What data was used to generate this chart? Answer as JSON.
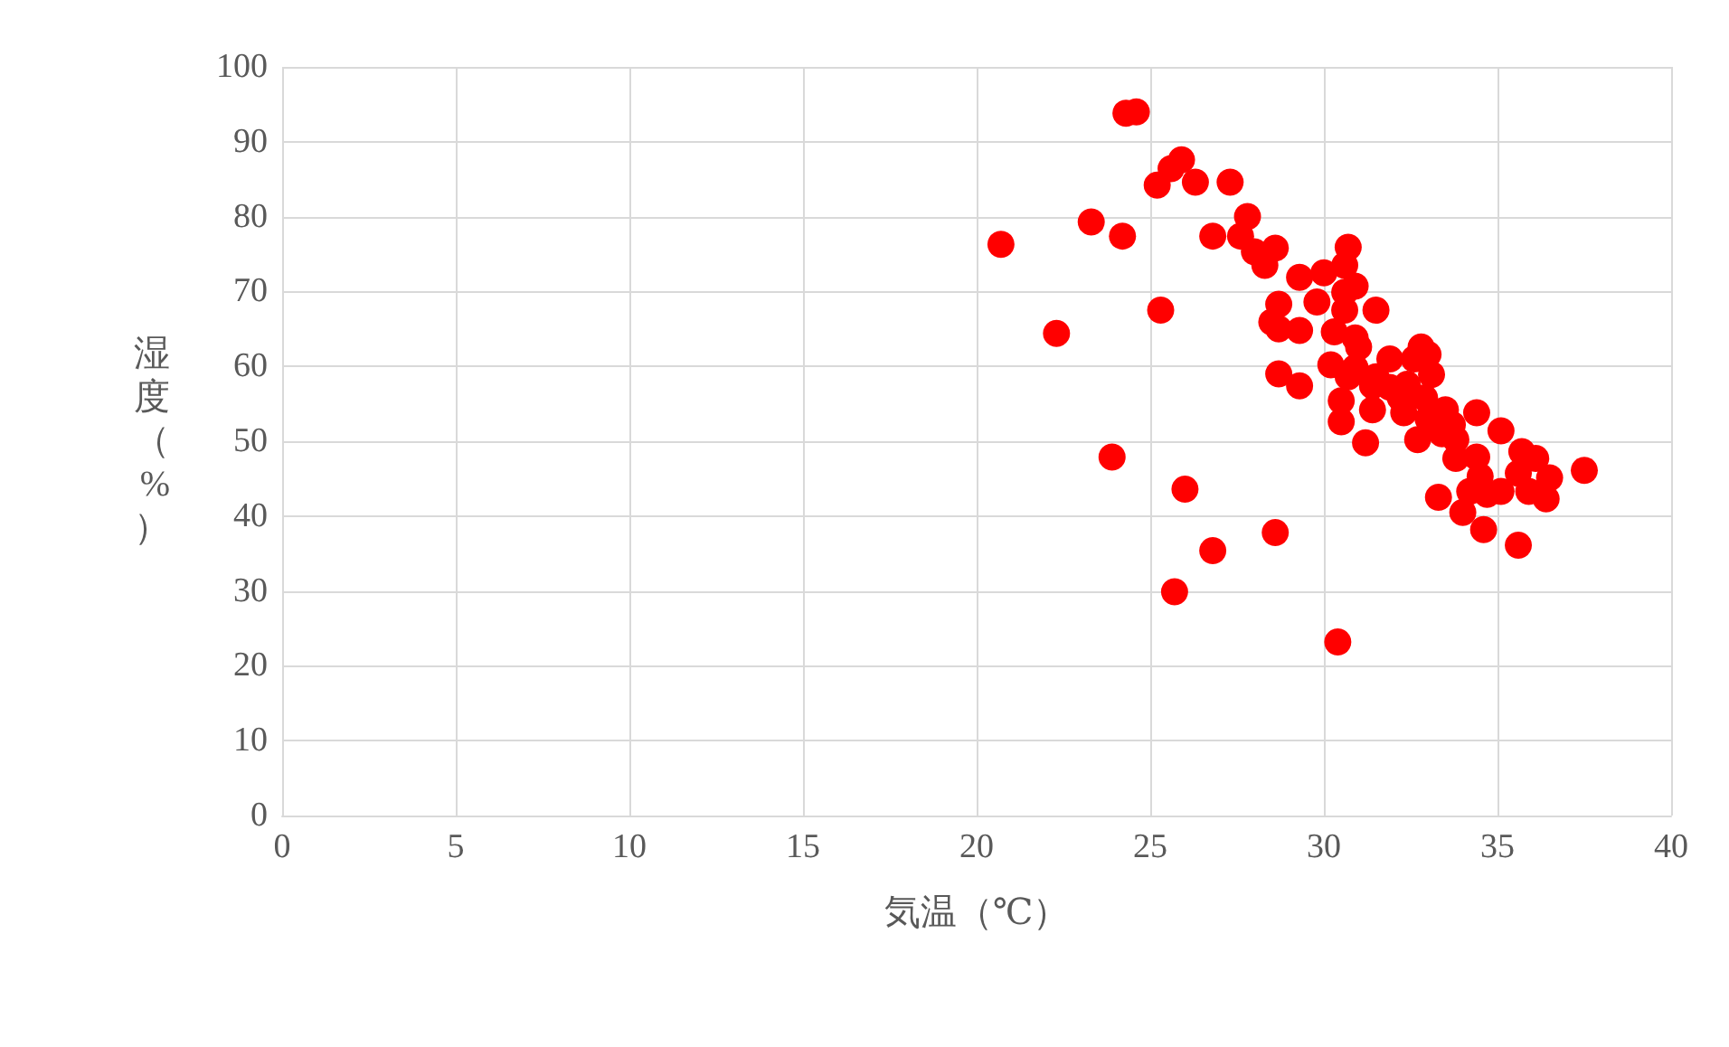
{
  "chart_data": {
    "type": "scatter",
    "xlabel": "気温（℃）",
    "ylabel": "湿度（%）",
    "xlim": [
      0,
      40
    ],
    "xticks": [
      0,
      5,
      10,
      15,
      20,
      25,
      30,
      35,
      40
    ],
    "ylim": [
      0,
      100
    ],
    "yticks": [
      0,
      10,
      20,
      30,
      40,
      50,
      60,
      70,
      80,
      90,
      100
    ],
    "grid": true,
    "marker": "circle",
    "x": [
      24.3,
      24.6,
      25.9,
      25.6,
      25.2,
      26.3,
      27.3,
      27.8,
      23.3,
      24.2,
      20.7,
      26.8,
      27.6,
      28.0,
      28.3,
      28.6,
      29.3,
      28.7,
      28.5,
      28.7,
      29.3,
      25.3,
      22.3,
      28.7,
      29.3,
      23.9,
      26.0,
      28.6,
      26.8,
      25.7,
      30.0,
      29.8,
      30.7,
      30.6,
      30.9,
      30.6,
      31.5,
      30.6,
      30.3,
      30.9,
      31.0,
      32.8,
      33.0,
      31.9,
      32.6,
      30.2,
      30.9,
      30.7,
      31.5,
      33.1,
      31.4,
      31.9,
      32.4,
      32.9,
      30.5,
      32.2,
      32.3,
      33.5,
      34.4,
      31.4,
      30.5,
      33.0,
      33.7,
      32.7,
      33.4,
      33.8,
      35.1,
      31.2,
      35.7,
      36.1,
      33.8,
      34.4,
      35.6,
      36.5,
      37.5,
      34.5,
      34.2,
      34.7,
      35.1,
      35.9,
      36.4,
      33.3,
      34.0,
      34.6,
      35.6,
      30.4
    ],
    "series": [
      {
        "color": "#ff0000",
        "values": [
          93.8,
          94.0,
          87.6,
          86.4,
          84.2,
          84.6,
          84.6,
          80.0,
          79.3,
          77.4,
          76.3,
          77.4,
          77.4,
          75.3,
          73.5,
          75.8,
          71.9,
          68.3,
          65.9,
          65.0,
          64.8,
          67.5,
          64.4,
          59.0,
          57.4,
          47.9,
          43.6,
          37.8,
          35.4,
          29.9,
          72.5,
          68.6,
          75.9,
          73.5,
          70.7,
          69.9,
          67.5,
          67.5,
          64.6,
          63.8,
          62.6,
          62.6,
          61.6,
          61.0,
          61.0,
          60.2,
          59.8,
          58.6,
          58.6,
          58.9,
          57.4,
          57.2,
          57.6,
          55.8,
          55.4,
          55.8,
          53.8,
          54.2,
          53.8,
          54.2,
          52.6,
          53.0,
          52.2,
          50.2,
          51.0,
          50.2,
          51.4,
          49.8,
          48.6,
          47.7,
          47.7,
          47.9,
          45.7,
          45.1,
          46.1,
          45.3,
          43.3,
          42.9,
          43.3,
          43.3,
          42.3,
          42.5,
          40.5,
          38.2,
          36.1,
          23.2
        ]
      }
    ]
  }
}
